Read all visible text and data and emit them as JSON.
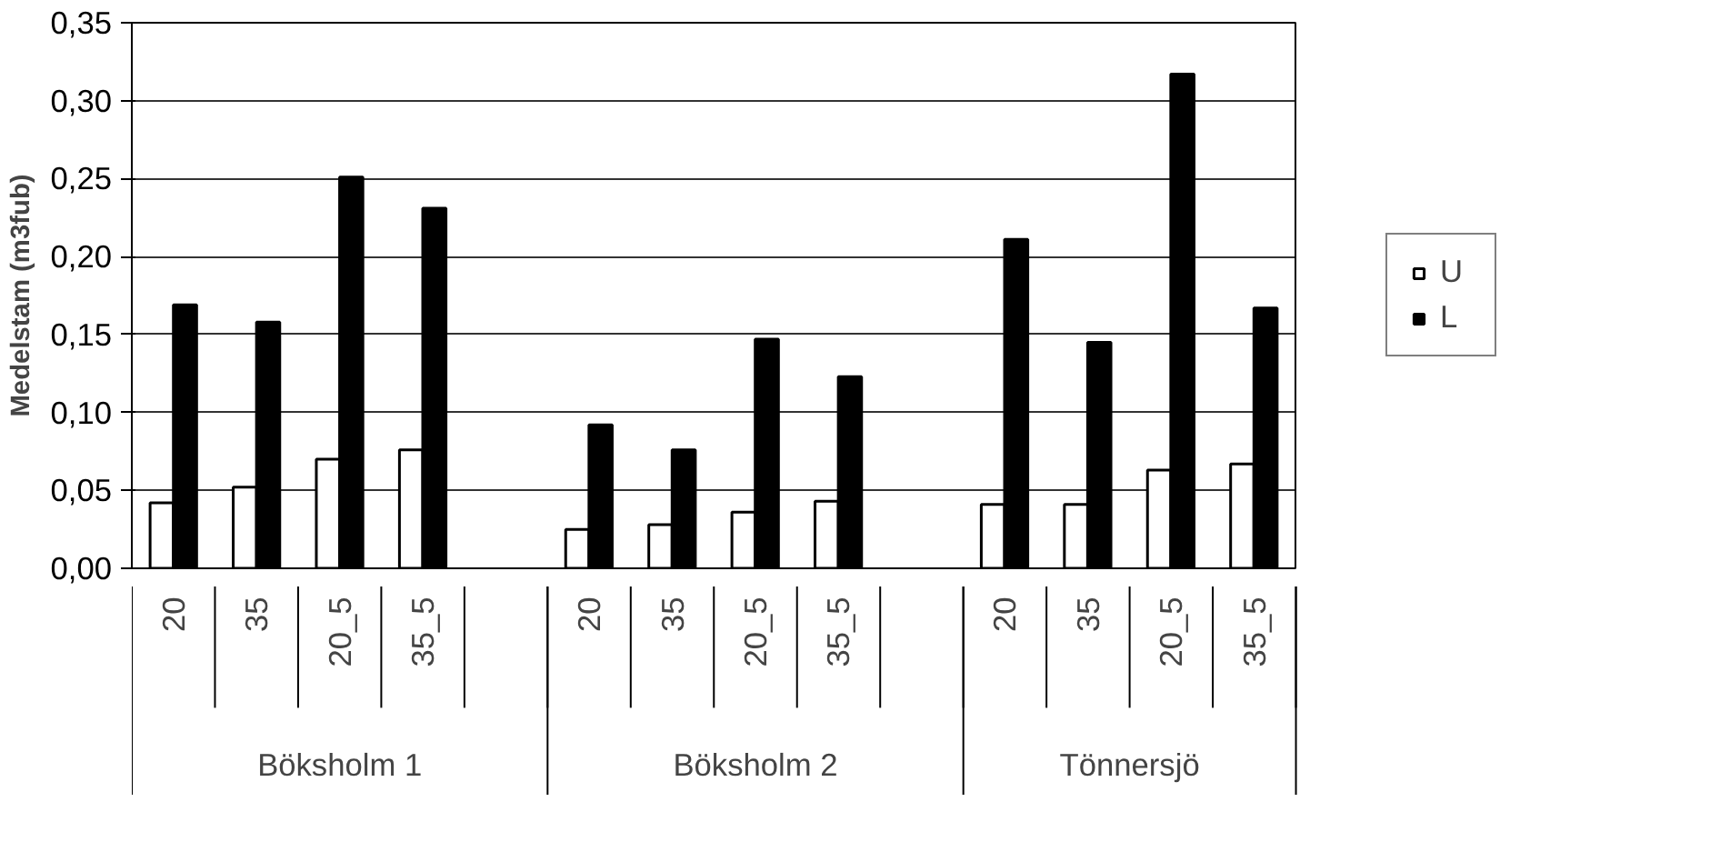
{
  "chart_data": {
    "type": "bar",
    "ylabel": "Medelstam (m3fub)",
    "categories": [
      "20",
      "35",
      "20_5",
      "35_5",
      null,
      "20",
      "35",
      "20_5",
      "35_5",
      null,
      "20",
      "35",
      "20_5",
      "35_5"
    ],
    "series": [
      {
        "name": "U",
        "color": "#ffffff",
        "values": [
          0.042,
          0.052,
          0.07,
          0.076,
          null,
          0.025,
          0.028,
          0.036,
          0.043,
          null,
          0.041,
          0.041,
          0.063,
          0.067
        ]
      },
      {
        "name": "L",
        "color": "#000000",
        "values": [
          0.169,
          0.158,
          0.251,
          0.231,
          null,
          0.092,
          0.076,
          0.147,
          0.123,
          null,
          0.211,
          0.145,
          0.317,
          0.167
        ]
      }
    ],
    "annotations": [
      "Böksholm 1",
      "Böksholm 2",
      "Tönnersjö"
    ],
    "ylim": [
      0,
      0.35
    ],
    "yticks": [
      {
        "value": 0,
        "label": "0,00"
      },
      {
        "value": 0.05,
        "label": "0,05"
      },
      {
        "value": 0.1,
        "label": "0,10"
      },
      {
        "value": 0.15,
        "label": "0,15"
      },
      {
        "value": 0.2,
        "label": "0,20"
      },
      {
        "value": 0.25,
        "label": "0,25"
      },
      {
        "value": 0.3,
        "label": "0,30"
      },
      {
        "value": 0.35,
        "label": "0,35"
      }
    ],
    "grid": "y",
    "legend": "right"
  }
}
